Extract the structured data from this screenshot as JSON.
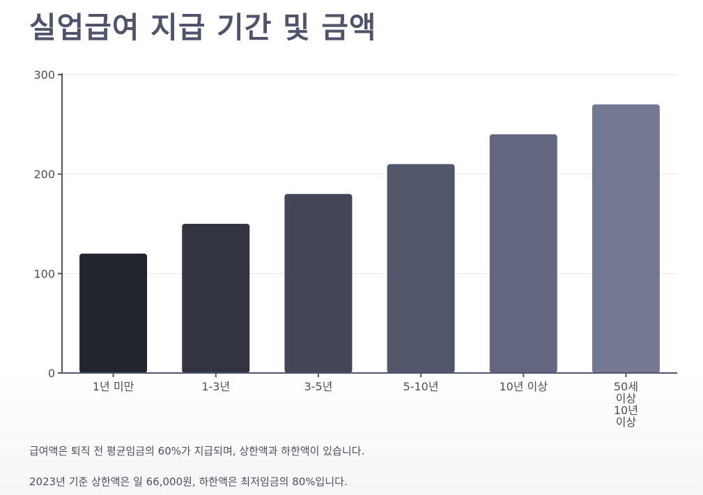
{
  "title": "실업급여 지급 기간 및 금액",
  "chart_data": {
    "type": "bar",
    "categories": [
      "1년 미만",
      "1-3년",
      "3-5년",
      "5-10년",
      "10년 이상",
      "50세 이상 10년 이상"
    ],
    "category_lines": [
      [
        "1년 미만"
      ],
      [
        "1-3년"
      ],
      [
        "3-5년"
      ],
      [
        "5-10년"
      ],
      [
        "10년 이상"
      ],
      [
        "50세",
        "이상",
        "10년",
        "이상"
      ]
    ],
    "values": [
      120,
      150,
      180,
      210,
      240,
      270
    ],
    "ylim": [
      0,
      300
    ],
    "yticks": [
      0,
      100,
      200,
      300
    ],
    "ytick_labels": [
      "0",
      "100",
      "200",
      "300"
    ],
    "grid": true,
    "colors": [
      "#22252d",
      "#32343f",
      "#434656",
      "#52566a",
      "#62667f",
      "#747893"
    ],
    "axis_color": "#50546a",
    "grid_color": "#e4e4e8"
  },
  "notes": [
    "급여액은 퇴직 전 평균임금의 60%가 지급되며, 상한액과 하한액이 있습니다.",
    "2023년 기준 상한액은 일 66,000원, 하한액은 최저임금의 80%입니다."
  ]
}
